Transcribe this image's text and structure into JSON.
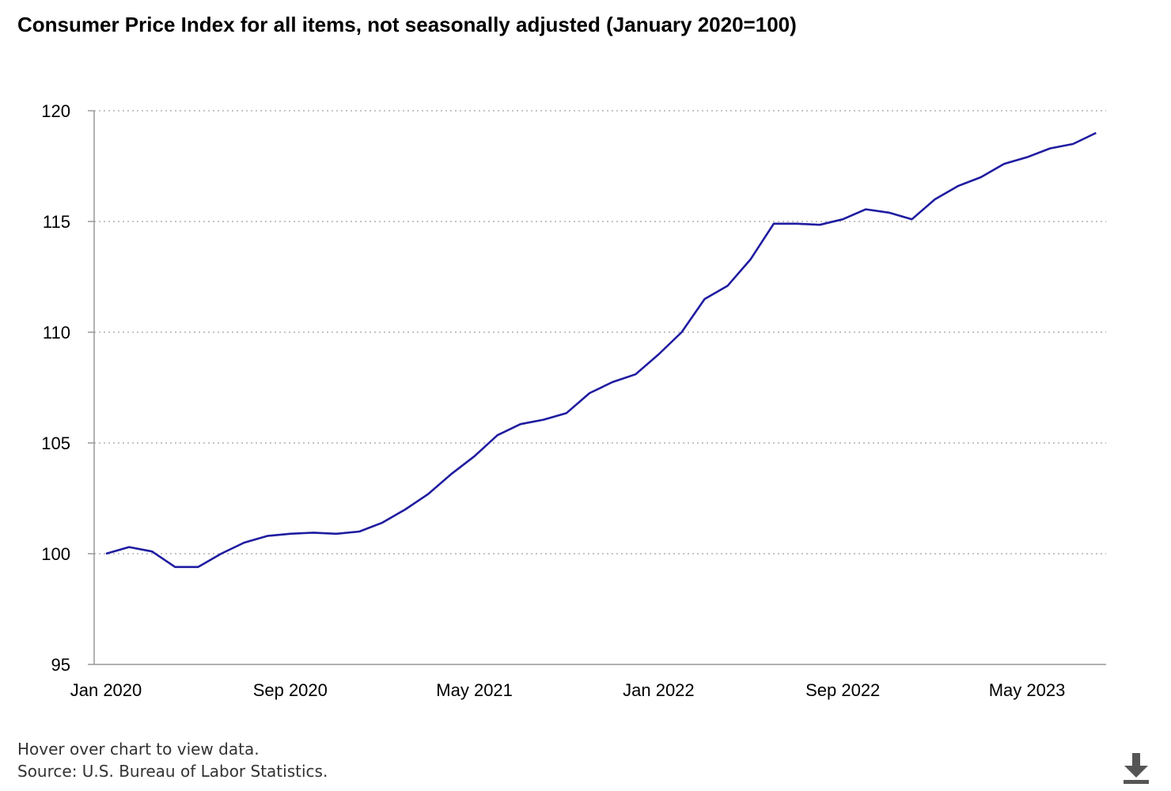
{
  "chart_data": {
    "type": "line",
    "title": "Consumer Price Index for all items, not seasonally adjusted (January 2020=100)",
    "xlabel": "",
    "ylabel": "",
    "ylim": [
      95,
      120
    ],
    "yticks": [
      95,
      100,
      105,
      110,
      115,
      120
    ],
    "xtick_labels": [
      "Jan 2020",
      "Sep 2020",
      "May 2021",
      "Jan 2022",
      "Sep 2022",
      "May 2023"
    ],
    "xtick_dates": [
      "2020-01",
      "2020-09",
      "2021-05",
      "2022-01",
      "2022-09",
      "2023-05"
    ],
    "grid": "horizontal-dotted",
    "line_color": "#1f1ca0",
    "series": [
      {
        "name": "",
        "x": [
          "2020-01",
          "2020-02",
          "2020-03",
          "2020-04",
          "2020-05",
          "2020-06",
          "2020-07",
          "2020-08",
          "2020-09",
          "2020-10",
          "2020-11",
          "2020-12",
          "2021-01",
          "2021-02",
          "2021-03",
          "2021-04",
          "2021-05",
          "2021-06",
          "2021-07",
          "2021-08",
          "2021-09",
          "2021-10",
          "2021-11",
          "2021-12",
          "2022-01",
          "2022-02",
          "2022-03",
          "2022-04",
          "2022-05",
          "2022-06",
          "2022-07",
          "2022-08",
          "2022-09",
          "2022-10",
          "2022-11",
          "2022-12",
          "2023-01",
          "2023-02",
          "2023-03",
          "2023-04",
          "2023-05",
          "2023-06",
          "2023-07",
          "2023-08"
        ],
        "values": [
          100.0,
          100.3,
          100.1,
          99.4,
          99.4,
          100.0,
          100.5,
          100.8,
          100.9,
          100.95,
          100.9,
          101.0,
          101.4,
          102.0,
          102.7,
          103.6,
          104.4,
          105.35,
          105.85,
          106.05,
          106.35,
          107.25,
          107.75,
          108.1,
          109.0,
          110.0,
          111.5,
          112.1,
          113.3,
          114.9,
          114.9,
          114.85,
          115.1,
          115.55,
          115.4,
          115.1,
          116.0,
          116.6,
          117.0,
          117.6,
          117.9,
          118.3,
          118.5,
          119.0
        ]
      }
    ]
  },
  "footer": {
    "hover_note": "Hover over chart to view data.",
    "source": "Source: U.S. Bureau of Labor Statistics."
  },
  "icons": {
    "download": "download-icon"
  }
}
